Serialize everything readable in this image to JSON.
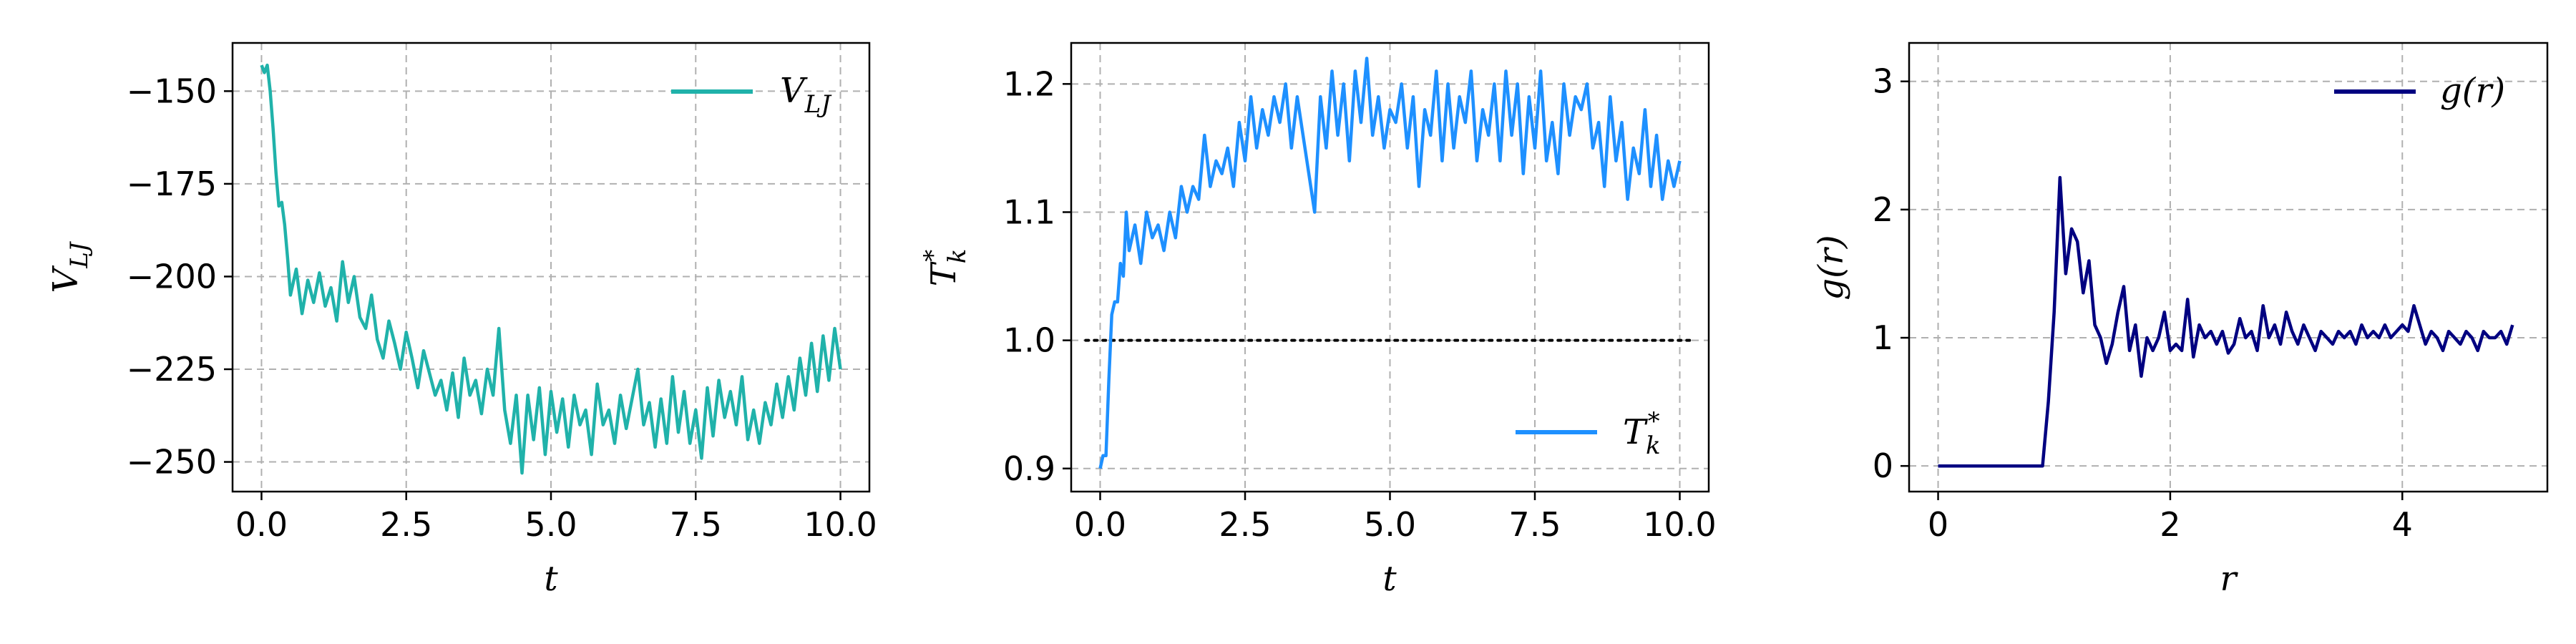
{
  "chart_data": [
    {
      "type": "line",
      "xlabel": "t",
      "ylabel": "V_LJ",
      "xlim": [
        -0.5,
        10.5
      ],
      "ylim": [
        -258,
        -137
      ],
      "xticks": [
        0.0,
        2.5,
        5.0,
        7.5,
        10.0
      ],
      "xtick_labels": [
        "0.0",
        "2.5",
        "5.0",
        "7.5",
        "10.0"
      ],
      "yticks": [
        -150,
        -175,
        -200,
        -225,
        -250
      ],
      "ytick_labels": [
        "−150",
        "−175",
        "−200",
        "−225",
        "−250"
      ],
      "grid": true,
      "legend_position": "top-right",
      "series": [
        {
          "name": "V_LJ",
          "color": "#20b2aa",
          "x": [
            0.0,
            0.05,
            0.1,
            0.15,
            0.2,
            0.25,
            0.3,
            0.35,
            0.4,
            0.45,
            0.5,
            0.6,
            0.7,
            0.8,
            0.9,
            1.0,
            1.1,
            1.2,
            1.3,
            1.4,
            1.5,
            1.6,
            1.7,
            1.8,
            1.9,
            2.0,
            2.1,
            2.2,
            2.3,
            2.4,
            2.5,
            2.6,
            2.7,
            2.8,
            2.9,
            3.0,
            3.1,
            3.2,
            3.3,
            3.4,
            3.5,
            3.6,
            3.7,
            3.8,
            3.9,
            4.0,
            4.1,
            4.2,
            4.3,
            4.4,
            4.5,
            4.6,
            4.7,
            4.8,
            4.9,
            5.0,
            5.1,
            5.2,
            5.3,
            5.4,
            5.5,
            5.6,
            5.7,
            5.8,
            5.9,
            6.0,
            6.1,
            6.2,
            6.3,
            6.4,
            6.5,
            6.6,
            6.7,
            6.8,
            6.9,
            7.0,
            7.1,
            7.2,
            7.3,
            7.4,
            7.5,
            7.6,
            7.7,
            7.8,
            7.9,
            8.0,
            8.1,
            8.2,
            8.3,
            8.4,
            8.5,
            8.6,
            8.7,
            8.8,
            8.9,
            9.0,
            9.1,
            9.2,
            9.3,
            9.4,
            9.5,
            9.6,
            9.7,
            9.8,
            9.9,
            10.0
          ],
          "y": [
            -143,
            -145,
            -143,
            -150,
            -160,
            -172,
            -181,
            -180,
            -186,
            -195,
            -205,
            -198,
            -210,
            -201,
            -207,
            -199,
            -208,
            -203,
            -212,
            -196,
            -207,
            -200,
            -211,
            -214,
            -205,
            -217,
            -222,
            -212,
            -218,
            -225,
            -215,
            -222,
            -230,
            -220,
            -226,
            -232,
            -228,
            -236,
            -226,
            -238,
            -222,
            -232,
            -228,
            -237,
            -225,
            -232,
            -214,
            -236,
            -245,
            -232,
            -253,
            -232,
            -244,
            -230,
            -248,
            -231,
            -242,
            -233,
            -246,
            -232,
            -240,
            -236,
            -248,
            -229,
            -240,
            -236,
            -245,
            -232,
            -241,
            -233,
            -225,
            -240,
            -234,
            -246,
            -233,
            -245,
            -227,
            -242,
            -231,
            -245,
            -236,
            -249,
            -230,
            -243,
            -228,
            -238,
            -231,
            -240,
            -227,
            -244,
            -236,
            -245,
            -234,
            -240,
            -229,
            -238,
            -227,
            -236,
            -222,
            -232,
            -218,
            -231,
            -216,
            -228,
            -214,
            -225
          ]
        }
      ]
    },
    {
      "type": "line",
      "xlabel": "t",
      "ylabel": "T_k*",
      "xlim": [
        -0.5,
        10.5
      ],
      "ylim": [
        0.882,
        1.232
      ],
      "xticks": [
        0.0,
        2.5,
        5.0,
        7.5,
        10.0
      ],
      "xtick_labels": [
        "0.0",
        "2.5",
        "5.0",
        "7.5",
        "10.0"
      ],
      "yticks": [
        0.9,
        1.0,
        1.1,
        1.2
      ],
      "ytick_labels": [
        "0.9",
        "1.0",
        "1.1",
        "1.2"
      ],
      "grid": true,
      "legend_position": "bottom-right",
      "reference_line": {
        "y": 1.0,
        "x": [
          -0.25,
          10.25
        ],
        "color": "#000000",
        "style": "dotted"
      },
      "series": [
        {
          "name": "T_k*",
          "color": "#1e90ff",
          "x": [
            0.0,
            0.05,
            0.1,
            0.15,
            0.2,
            0.25,
            0.3,
            0.35,
            0.4,
            0.45,
            0.5,
            0.6,
            0.7,
            0.8,
            0.9,
            1.0,
            1.1,
            1.2,
            1.3,
            1.4,
            1.5,
            1.6,
            1.7,
            1.8,
            1.9,
            2.0,
            2.1,
            2.2,
            2.3,
            2.4,
            2.5,
            2.6,
            2.7,
            2.8,
            2.9,
            3.0,
            3.1,
            3.2,
            3.3,
            3.4,
            3.5,
            3.6,
            3.7,
            3.8,
            3.9,
            4.0,
            4.1,
            4.2,
            4.3,
            4.4,
            4.5,
            4.6,
            4.7,
            4.8,
            4.9,
            5.0,
            5.1,
            5.2,
            5.3,
            5.4,
            5.5,
            5.6,
            5.7,
            5.8,
            5.9,
            6.0,
            6.1,
            6.2,
            6.3,
            6.4,
            6.5,
            6.6,
            6.7,
            6.8,
            6.9,
            7.0,
            7.1,
            7.2,
            7.3,
            7.4,
            7.5,
            7.6,
            7.7,
            7.8,
            7.9,
            8.0,
            8.1,
            8.2,
            8.3,
            8.4,
            8.5,
            8.6,
            8.7,
            8.8,
            8.9,
            9.0,
            9.1,
            9.2,
            9.3,
            9.4,
            9.5,
            9.6,
            9.7,
            9.8,
            9.9,
            10.0
          ],
          "y": [
            0.9,
            0.91,
            0.91,
            0.97,
            1.02,
            1.03,
            1.03,
            1.06,
            1.05,
            1.1,
            1.07,
            1.09,
            1.06,
            1.1,
            1.08,
            1.09,
            1.07,
            1.1,
            1.08,
            1.12,
            1.1,
            1.12,
            1.11,
            1.16,
            1.12,
            1.14,
            1.13,
            1.15,
            1.12,
            1.17,
            1.14,
            1.19,
            1.15,
            1.18,
            1.16,
            1.19,
            1.17,
            1.2,
            1.15,
            1.19,
            1.16,
            1.13,
            1.1,
            1.19,
            1.15,
            1.21,
            1.16,
            1.2,
            1.14,
            1.21,
            1.17,
            1.22,
            1.16,
            1.19,
            1.15,
            1.18,
            1.17,
            1.2,
            1.15,
            1.19,
            1.12,
            1.18,
            1.16,
            1.21,
            1.14,
            1.2,
            1.15,
            1.19,
            1.17,
            1.21,
            1.14,
            1.18,
            1.16,
            1.2,
            1.14,
            1.21,
            1.16,
            1.2,
            1.13,
            1.19,
            1.15,
            1.21,
            1.14,
            1.17,
            1.13,
            1.2,
            1.16,
            1.19,
            1.18,
            1.2,
            1.15,
            1.17,
            1.12,
            1.19,
            1.14,
            1.17,
            1.11,
            1.15,
            1.13,
            1.18,
            1.12,
            1.16,
            1.11,
            1.14,
            1.12,
            1.14
          ]
        }
      ]
    },
    {
      "type": "line",
      "xlabel": "r",
      "ylabel": "g(r)",
      "xlim": [
        -0.25,
        5.25
      ],
      "ylim": [
        -0.2,
        3.3
      ],
      "xticks": [
        0,
        2,
        4
      ],
      "xtick_labels": [
        "0",
        "2",
        "4"
      ],
      "yticks": [
        0,
        1,
        2,
        3
      ],
      "ytick_labels": [
        "0",
        "1",
        "2",
        "3"
      ],
      "grid": true,
      "legend_position": "top-right",
      "series": [
        {
          "name": "g(r)",
          "color": "#000080",
          "x": [
            0.0,
            0.9,
            0.95,
            1.0,
            1.05,
            1.1,
            1.15,
            1.2,
            1.25,
            1.3,
            1.35,
            1.4,
            1.45,
            1.5,
            1.55,
            1.6,
            1.65,
            1.7,
            1.75,
            1.8,
            1.85,
            1.9,
            1.95,
            2.0,
            2.05,
            2.1,
            2.15,
            2.2,
            2.25,
            2.3,
            2.35,
            2.4,
            2.45,
            2.5,
            2.55,
            2.6,
            2.65,
            2.7,
            2.75,
            2.8,
            2.85,
            2.9,
            2.95,
            3.0,
            3.05,
            3.1,
            3.15,
            3.2,
            3.25,
            3.3,
            3.35,
            3.4,
            3.45,
            3.5,
            3.55,
            3.6,
            3.65,
            3.7,
            3.75,
            3.8,
            3.85,
            3.9,
            3.95,
            4.0,
            4.05,
            4.1,
            4.15,
            4.2,
            4.25,
            4.3,
            4.35,
            4.4,
            4.45,
            4.5,
            4.55,
            4.6,
            4.65,
            4.7,
            4.75,
            4.8,
            4.85,
            4.9,
            4.95
          ],
          "y": [
            0,
            0,
            0.5,
            1.2,
            2.25,
            1.5,
            1.85,
            1.75,
            1.35,
            1.6,
            1.1,
            1.0,
            0.8,
            0.95,
            1.2,
            1.4,
            0.9,
            1.1,
            0.7,
            1.0,
            0.9,
            1.0,
            1.2,
            0.9,
            0.95,
            0.9,
            1.3,
            0.85,
            1.1,
            1.0,
            1.05,
            0.95,
            1.05,
            0.88,
            0.95,
            1.15,
            1.0,
            1.05,
            0.9,
            1.25,
            1.0,
            1.1,
            0.95,
            1.2,
            1.05,
            0.95,
            1.1,
            1.0,
            0.9,
            1.05,
            1.0,
            0.95,
            1.05,
            1.0,
            1.05,
            0.95,
            1.1,
            1.0,
            1.05,
            1.0,
            1.1,
            1.0,
            1.05,
            1.1,
            1.05,
            1.25,
            1.1,
            0.95,
            1.05,
            1.0,
            0.9,
            1.05,
            1.0,
            0.95,
            1.05,
            1.0,
            0.9,
            1.05,
            1.0,
            1.0,
            1.05,
            0.95,
            1.1
          ]
        }
      ]
    }
  ]
}
